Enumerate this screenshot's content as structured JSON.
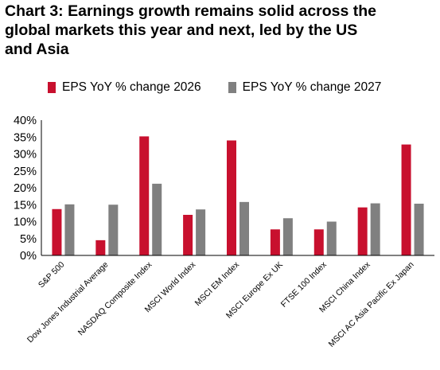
{
  "title_lines": [
    "Chart 3: Earnings growth remains solid across the",
    "global markets this year and next, led by the US",
    "and Asia"
  ],
  "colors": {
    "series_2026": "#c8102e",
    "series_2027": "#808080",
    "axis": "#000000"
  },
  "chart_data": {
    "type": "bar",
    "title": "Chart 3: Earnings growth remains solid across the global markets this year and next, led by the US and Asia",
    "categories": [
      "S&P 500",
      "Dow Jones Industrial Average",
      "NASDAQ Composite Index",
      "MSCI World Index",
      "MSCI EM Index",
      "MSCI Europe Ex UK",
      "FTSE 100 Index",
      "MSCI China Index",
      "MSCI AC Asia Pacific Ex Japan"
    ],
    "series": [
      {
        "name": "EPS YoY % change 2026",
        "values": [
          13.7,
          4.5,
          35.2,
          12.0,
          34.0,
          7.7,
          7.7,
          14.2,
          32.8
        ]
      },
      {
        "name": "EPS YoY % change 2027",
        "values": [
          15.1,
          15.0,
          21.2,
          13.6,
          15.8,
          11.0,
          10.0,
          15.4,
          15.3
        ]
      }
    ],
    "ylim": [
      0,
      40
    ],
    "yticks": [
      "0%",
      "5%",
      "10%",
      "15%",
      "20%",
      "25%",
      "30%",
      "35%",
      "40%"
    ],
    "ytick_values": [
      0,
      5,
      10,
      15,
      20,
      25,
      30,
      35,
      40
    ],
    "legend_position": "top-left",
    "grid": false
  }
}
